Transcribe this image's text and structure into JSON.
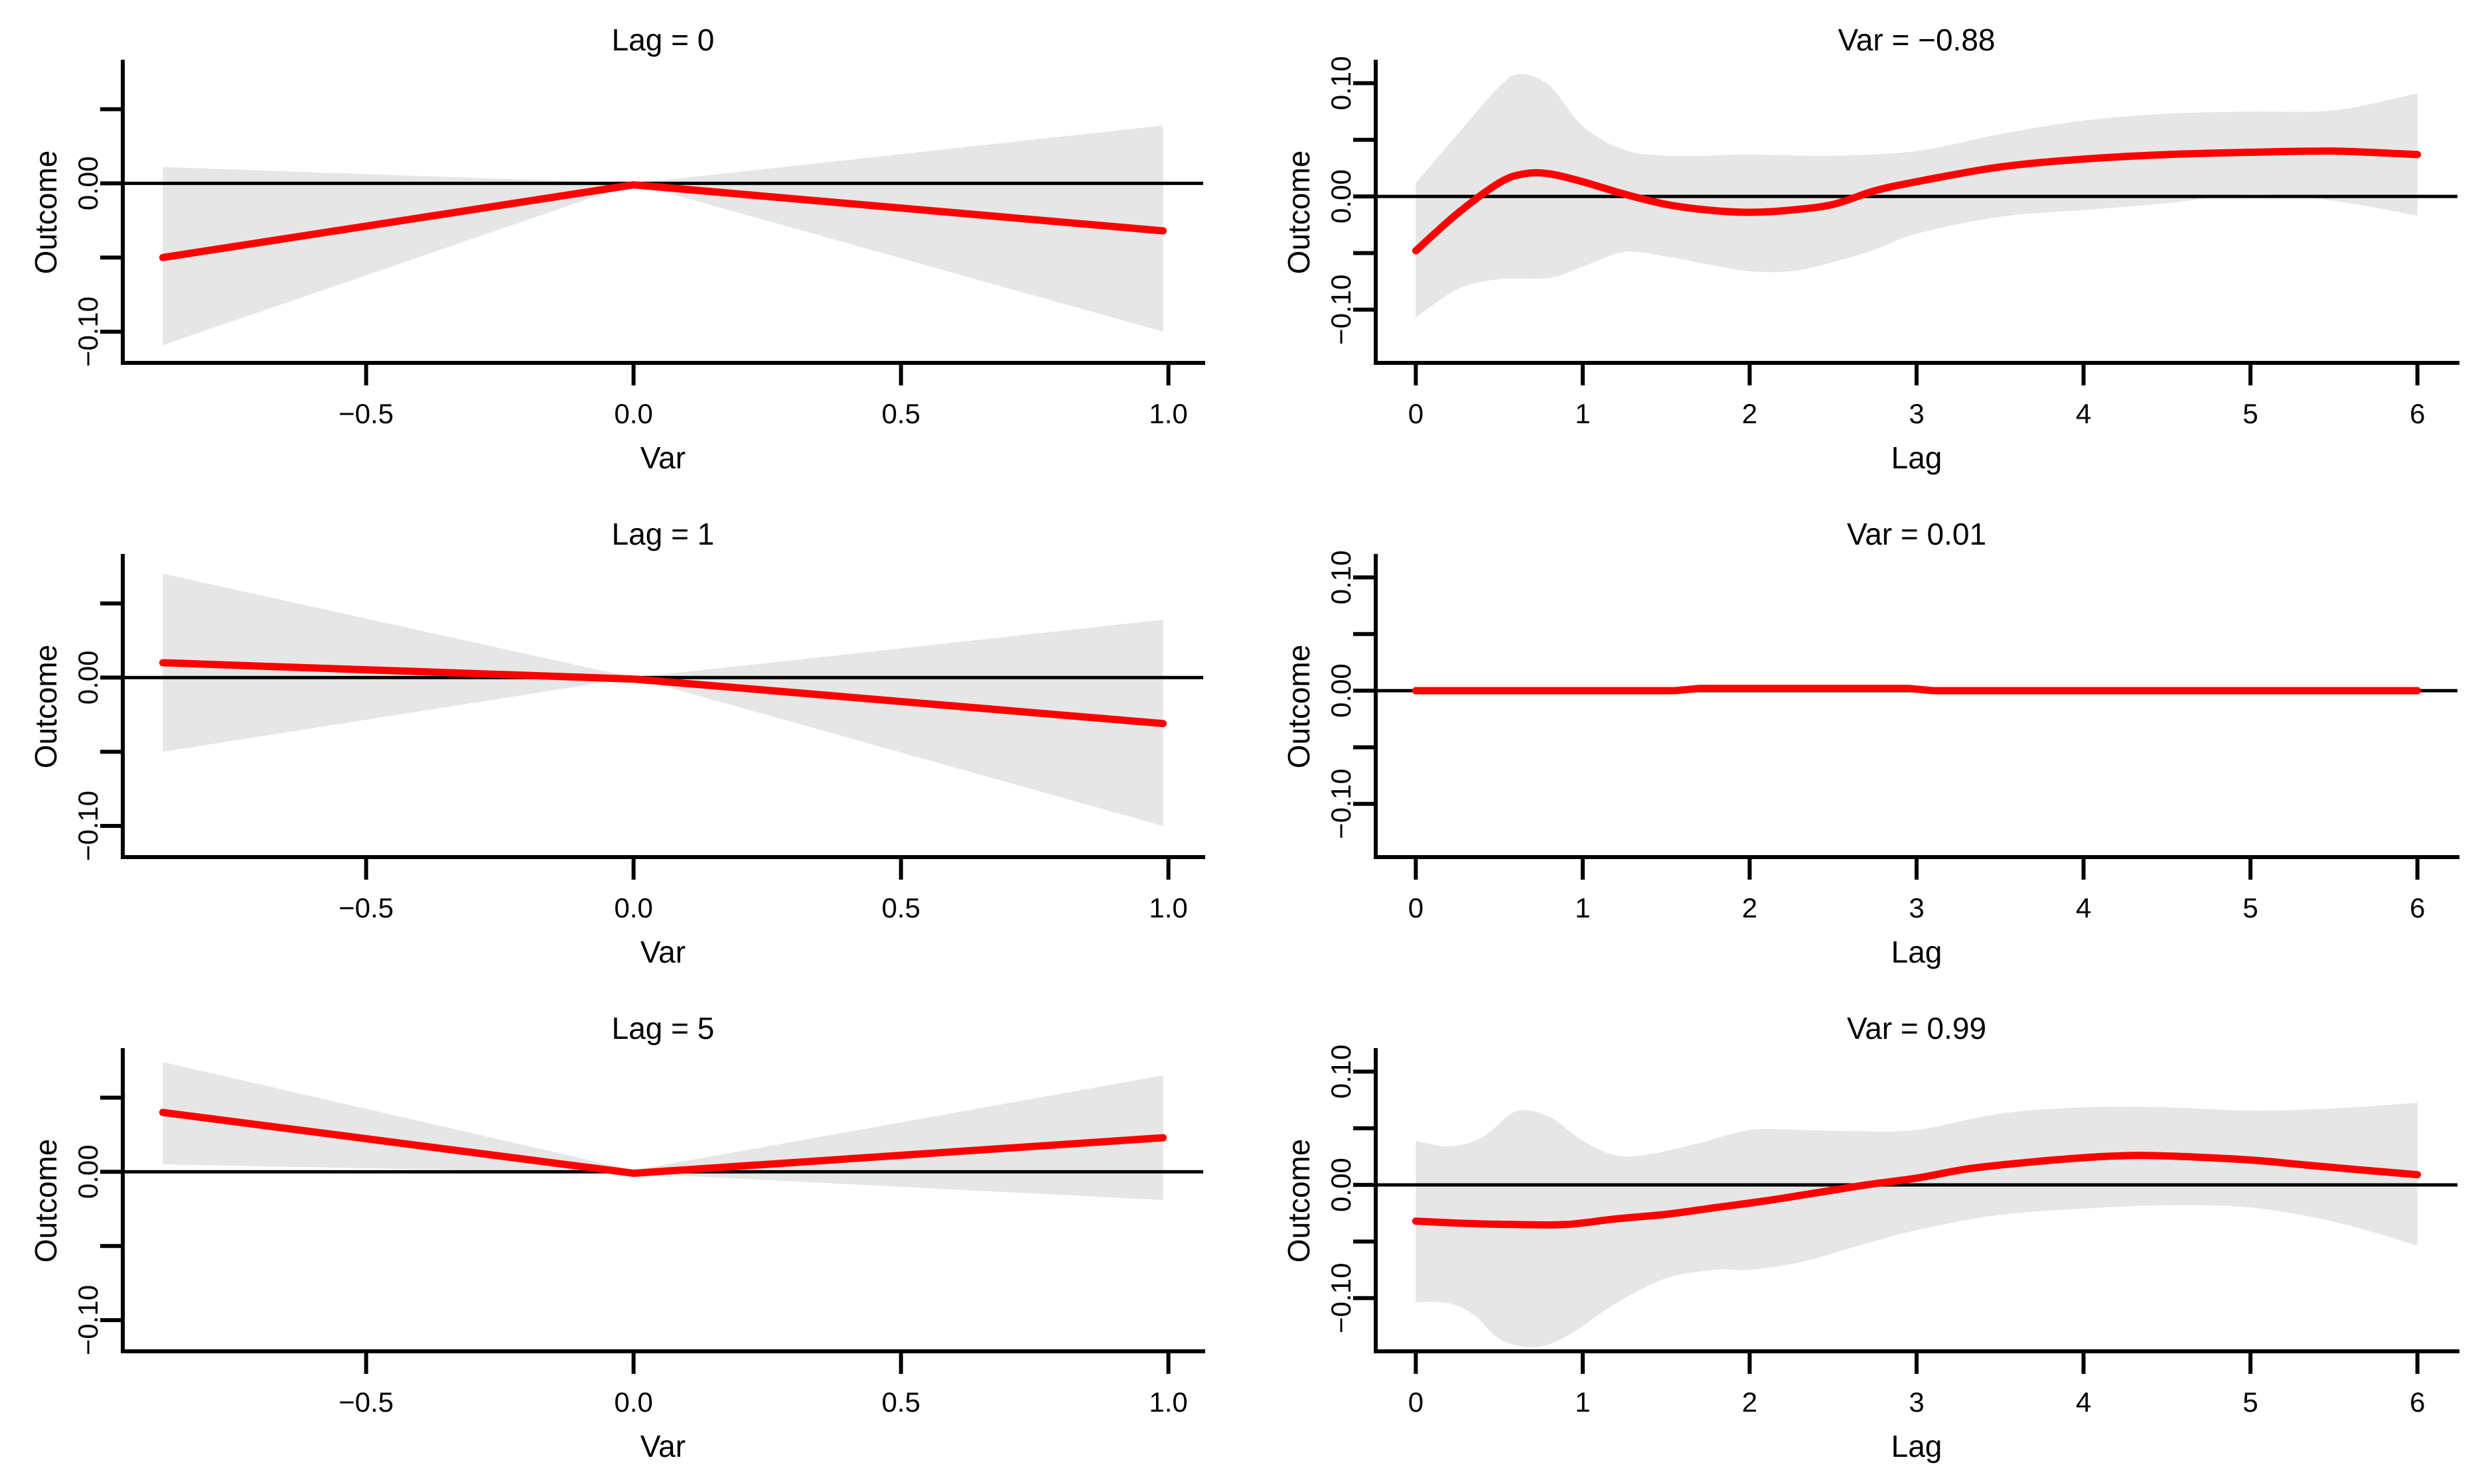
{
  "figure": {
    "background": "#ffffff",
    "estimate_color": "#ff0000",
    "band_color": "#e6e6e6",
    "reference_color": "#000000",
    "axis_color": "#000000",
    "text_color": "#000000"
  },
  "chart_data": [
    {
      "type": "line",
      "title": "Lag = 0",
      "xlabel": "Var",
      "ylabel": "Outcome",
      "xlim": [
        -0.955,
        1.065
      ],
      "ylim": [
        -0.121,
        0.082
      ],
      "xticks": {
        "values": [
          -0.5,
          0.0,
          0.5,
          1.0
        ],
        "labels": [
          "−0.5",
          "0.0",
          "0.5",
          "1.0"
        ]
      },
      "yticks": {
        "values": [
          0.05,
          0.0,
          -0.05,
          -0.1
        ],
        "labels": [
          "",
          "0.00",
          "",
          "−0.10"
        ]
      },
      "reference_line_y": 0,
      "legend": null,
      "grid": false,
      "smooth": false,
      "series": [
        {
          "name": "estimate",
          "points": [
            [
              -0.88,
              -0.05
            ],
            [
              0.0,
              -0.001
            ],
            [
              0.99,
              -0.032
            ]
          ]
        }
      ],
      "band": {
        "name": "confidence-interval",
        "upper": [
          [
            -0.88,
            0.011
          ],
          [
            0.0,
            0.0
          ],
          [
            0.99,
            0.039
          ]
        ],
        "lower": [
          [
            -0.88,
            -0.109
          ],
          [
            0.0,
            0.0
          ],
          [
            0.99,
            -0.1
          ]
        ]
      }
    },
    {
      "type": "line",
      "title": "Var = −0.88",
      "xlabel": "Lag",
      "ylabel": "Outcome",
      "xlim": [
        -0.24,
        6.24
      ],
      "ylim": [
        -0.147,
        0.119
      ],
      "xticks": {
        "values": [
          0,
          1,
          2,
          3,
          4,
          5,
          6
        ],
        "labels": [
          "0",
          "1",
          "2",
          "3",
          "4",
          "5",
          "6"
        ]
      },
      "yticks": {
        "values": [
          0.1,
          0.05,
          0.0,
          -0.05,
          -0.1
        ],
        "labels": [
          "0.10",
          "",
          "0.00",
          "",
          "−0.10"
        ]
      },
      "reference_line_y": 0,
      "legend": null,
      "grid": false,
      "smooth": true,
      "series": [
        {
          "name": "estimate",
          "points": [
            [
              0,
              -0.048
            ],
            [
              0.25,
              -0.015
            ],
            [
              0.5,
              0.012
            ],
            [
              0.65,
              0.02
            ],
            [
              0.8,
              0.02
            ],
            [
              1.0,
              0.013
            ],
            [
              1.25,
              0.002
            ],
            [
              1.5,
              -0.007
            ],
            [
              1.75,
              -0.012
            ],
            [
              2.0,
              -0.014
            ],
            [
              2.25,
              -0.012
            ],
            [
              2.5,
              -0.007
            ],
            [
              2.75,
              0.005
            ],
            [
              3.0,
              0.013
            ],
            [
              3.5,
              0.026
            ],
            [
              4.0,
              0.033
            ],
            [
              4.5,
              0.037
            ],
            [
              5.0,
              0.039
            ],
            [
              5.5,
              0.04
            ],
            [
              6.0,
              0.037
            ]
          ]
        }
      ],
      "band": {
        "name": "confidence-interval",
        "upper": [
          [
            0,
            0.012
          ],
          [
            0.25,
            0.055
          ],
          [
            0.5,
            0.097
          ],
          [
            0.62,
            0.108
          ],
          [
            0.8,
            0.098
          ],
          [
            1.0,
            0.062
          ],
          [
            1.25,
            0.041
          ],
          [
            1.5,
            0.036
          ],
          [
            1.75,
            0.036
          ],
          [
            2.0,
            0.037
          ],
          [
            2.5,
            0.036
          ],
          [
            3.0,
            0.04
          ],
          [
            3.5,
            0.055
          ],
          [
            4.0,
            0.067
          ],
          [
            4.5,
            0.073
          ],
          [
            5.0,
            0.075
          ],
          [
            5.5,
            0.076
          ],
          [
            6.0,
            0.091
          ]
        ],
        "lower": [
          [
            0,
            -0.107
          ],
          [
            0.25,
            -0.082
          ],
          [
            0.5,
            -0.073
          ],
          [
            0.8,
            -0.072
          ],
          [
            1.0,
            -0.062
          ],
          [
            1.25,
            -0.049
          ],
          [
            1.5,
            -0.053
          ],
          [
            1.75,
            -0.06
          ],
          [
            2.0,
            -0.066
          ],
          [
            2.25,
            -0.066
          ],
          [
            2.5,
            -0.058
          ],
          [
            2.75,
            -0.047
          ],
          [
            3.0,
            -0.033
          ],
          [
            3.5,
            -0.018
          ],
          [
            4.0,
            -0.012
          ],
          [
            4.5,
            -0.006
          ],
          [
            5.0,
            0.002
          ],
          [
            5.5,
            -0.004
          ],
          [
            6.0,
            -0.017
          ]
        ]
      }
    },
    {
      "type": "line",
      "title": "Lag = 1",
      "xlabel": "Var",
      "ylabel": "Outcome",
      "xlim": [
        -0.955,
        1.065
      ],
      "ylim": [
        -0.121,
        0.082
      ],
      "xticks": {
        "values": [
          -0.5,
          0.0,
          0.5,
          1.0
        ],
        "labels": [
          "−0.5",
          "0.0",
          "0.5",
          "1.0"
        ]
      },
      "yticks": {
        "values": [
          0.05,
          0.0,
          -0.05,
          -0.1
        ],
        "labels": [
          "",
          "0.00",
          "",
          "−0.10"
        ]
      },
      "reference_line_y": 0,
      "legend": null,
      "grid": false,
      "smooth": false,
      "series": [
        {
          "name": "estimate",
          "points": [
            [
              -0.88,
              0.01
            ],
            [
              0.0,
              -0.001
            ],
            [
              0.99,
              -0.031
            ]
          ]
        }
      ],
      "band": {
        "name": "confidence-interval",
        "upper": [
          [
            -0.88,
            0.07
          ],
          [
            0.0,
            0.0
          ],
          [
            0.99,
            0.039
          ]
        ],
        "lower": [
          [
            -0.88,
            -0.05
          ],
          [
            0.0,
            0.0
          ],
          [
            0.99,
            -0.1
          ]
        ]
      }
    },
    {
      "type": "line",
      "title": "Var = 0.01",
      "xlabel": "Lag",
      "ylabel": "Outcome",
      "xlim": [
        -0.24,
        6.24
      ],
      "ylim": [
        -0.147,
        0.119
      ],
      "xticks": {
        "values": [
          0,
          1,
          2,
          3,
          4,
          5,
          6
        ],
        "labels": [
          "0",
          "1",
          "2",
          "3",
          "4",
          "5",
          "6"
        ]
      },
      "yticks": {
        "values": [
          0.1,
          0.05,
          0.0,
          -0.05,
          -0.1
        ],
        "labels": [
          "0.10",
          "",
          "0.00",
          "",
          "−0.10"
        ]
      },
      "reference_line_y": 0,
      "legend": null,
      "grid": false,
      "smooth": false,
      "series": [
        {
          "name": "estimate",
          "points": [
            [
              0,
              0.0
            ],
            [
              1.55,
              0.0
            ],
            [
              1.7,
              0.002
            ],
            [
              2.95,
              0.002
            ],
            [
              3.1,
              0.0
            ],
            [
              6.0,
              0.0
            ]
          ]
        }
      ],
      "band": {
        "name": "confidence-interval",
        "upper": [
          [
            0,
            0.001
          ],
          [
            6.0,
            0.001
          ]
        ],
        "lower": [
          [
            0,
            -0.001
          ],
          [
            6.0,
            -0.001
          ]
        ]
      }
    },
    {
      "type": "line",
      "title": "Lag = 5",
      "xlabel": "Var",
      "ylabel": "Outcome",
      "xlim": [
        -0.955,
        1.065
      ],
      "ylim": [
        -0.121,
        0.082
      ],
      "xticks": {
        "values": [
          -0.5,
          0.0,
          0.5,
          1.0
        ],
        "labels": [
          "−0.5",
          "0.0",
          "0.5",
          "1.0"
        ]
      },
      "yticks": {
        "values": [
          0.05,
          0.0,
          -0.05,
          -0.1
        ],
        "labels": [
          "",
          "0.00",
          "",
          "−0.10"
        ]
      },
      "reference_line_y": 0,
      "legend": null,
      "grid": false,
      "smooth": false,
      "series": [
        {
          "name": "estimate",
          "points": [
            [
              -0.88,
              0.04
            ],
            [
              0.0,
              -0.001
            ],
            [
              0.99,
              0.023
            ]
          ]
        }
      ],
      "band": {
        "name": "confidence-interval",
        "upper": [
          [
            -0.88,
            0.074
          ],
          [
            0.0,
            0.001
          ],
          [
            0.99,
            0.065
          ]
        ],
        "lower": [
          [
            -0.88,
            0.005
          ],
          [
            0.0,
            -0.001
          ],
          [
            0.99,
            -0.019
          ]
        ]
      }
    },
    {
      "type": "line",
      "title": "Var = 0.99",
      "xlabel": "Lag",
      "ylabel": "Outcome",
      "xlim": [
        -0.24,
        6.24
      ],
      "ylim": [
        -0.147,
        0.119
      ],
      "xticks": {
        "values": [
          0,
          1,
          2,
          3,
          4,
          5,
          6
        ],
        "labels": [
          "0",
          "1",
          "2",
          "3",
          "4",
          "5",
          "6"
        ]
      },
      "yticks": {
        "values": [
          0.1,
          0.05,
          0.0,
          -0.05,
          -0.1
        ],
        "labels": [
          "0.10",
          "",
          "0.00",
          "",
          "−0.10"
        ]
      },
      "reference_line_y": 0,
      "legend": null,
      "grid": false,
      "smooth": true,
      "series": [
        {
          "name": "estimate",
          "points": [
            [
              0,
              -0.032
            ],
            [
              0.3,
              -0.034
            ],
            [
              0.6,
              -0.035
            ],
            [
              0.9,
              -0.035
            ],
            [
              1.2,
              -0.03
            ],
            [
              1.5,
              -0.026
            ],
            [
              1.8,
              -0.02
            ],
            [
              2.1,
              -0.014
            ],
            [
              2.4,
              -0.007
            ],
            [
              2.7,
              0.0
            ],
            [
              3.0,
              0.006
            ],
            [
              3.3,
              0.014
            ],
            [
              3.6,
              0.019
            ],
            [
              4.0,
              0.024
            ],
            [
              4.3,
              0.026
            ],
            [
              4.6,
              0.025
            ],
            [
              5.0,
              0.022
            ],
            [
              5.3,
              0.018
            ],
            [
              5.6,
              0.014
            ],
            [
              6.0,
              0.009
            ]
          ]
        }
      ],
      "band": {
        "name": "confidence-interval",
        "upper": [
          [
            0,
            0.039
          ],
          [
            0.2,
            0.034
          ],
          [
            0.4,
            0.042
          ],
          [
            0.6,
            0.065
          ],
          [
            0.8,
            0.06
          ],
          [
            1.0,
            0.039
          ],
          [
            1.2,
            0.026
          ],
          [
            1.4,
            0.027
          ],
          [
            1.7,
            0.037
          ],
          [
            2.0,
            0.0485
          ],
          [
            2.3,
            0.0485
          ],
          [
            2.6,
            0.0475
          ],
          [
            3.0,
            0.0485
          ],
          [
            3.5,
            0.063
          ],
          [
            4.0,
            0.0685
          ],
          [
            4.5,
            0.0685
          ],
          [
            5.0,
            0.0655
          ],
          [
            5.5,
            0.0675
          ],
          [
            6.0,
            0.0725
          ]
        ],
        "lower": [
          [
            0,
            -0.1035
          ],
          [
            0.2,
            -0.1045
          ],
          [
            0.35,
            -0.115
          ],
          [
            0.5,
            -0.136
          ],
          [
            0.7,
            -0.1435
          ],
          [
            0.9,
            -0.134
          ],
          [
            1.2,
            -0.1045
          ],
          [
            1.5,
            -0.0825
          ],
          [
            1.8,
            -0.075
          ],
          [
            2.0,
            -0.075
          ],
          [
            2.3,
            -0.0685
          ],
          [
            2.6,
            -0.056
          ],
          [
            3.0,
            -0.04
          ],
          [
            3.5,
            -0.0265
          ],
          [
            4.0,
            -0.021
          ],
          [
            4.5,
            -0.018
          ],
          [
            5.0,
            -0.02
          ],
          [
            5.5,
            -0.0325
          ],
          [
            6.0,
            -0.0535
          ]
        ]
      }
    }
  ]
}
